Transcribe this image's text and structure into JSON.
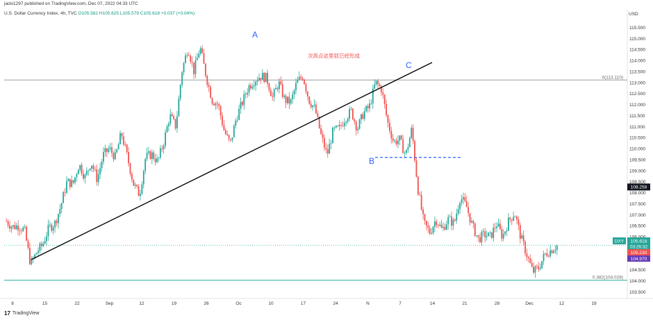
{
  "header": {
    "published": "jacki1297 published on TradingView.com, Dec 07, 2022 04:33 UTC"
  },
  "symbol_info": {
    "name": "U.S. Dollar Currency Index, 4h, TVC",
    "ohlc": "O105.582 H105.625 L105.579 C105.618 +0.037 (+0.04%)"
  },
  "footer": {
    "brand": "TradingView",
    "logo_glyph": "17"
  },
  "axis": {
    "currency": "USD"
  },
  "labels": {
    "point_a": "A",
    "point_b": "B",
    "point_c": "C",
    "annotation": "次高点这里就已经形成",
    "fib_top": "0(113.110)",
    "fib_bottom": "0.382(104.028)"
  },
  "price_tags": {
    "last_level": "108.258",
    "symbol": "DXY",
    "price": "105.618",
    "countdown": "03:26:32",
    "red_tag": "105.230",
    "purple_tag": "104.970"
  },
  "colors": {
    "up": "#26a69a",
    "down": "#ef5350",
    "trendline": "#000000",
    "fib_line": "#9e9e9e",
    "fib_bottom_line": "#26a69a",
    "dashed": "#2962ff",
    "label_blue": "#2962ff",
    "annotation_red": "#ef5350"
  },
  "chart_data": {
    "type": "candlestick",
    "interval": "4h",
    "yrange": [
      103.2,
      116.3
    ],
    "y_ticks": [
      "115.500",
      "115.000",
      "114.500",
      "114.000",
      "113.500",
      "113.000",
      "112.500",
      "112.000",
      "111.500",
      "111.000",
      "110.500",
      "110.000",
      "109.500",
      "109.000",
      "108.500",
      "108.000",
      "107.500",
      "107.000",
      "106.500",
      "106.000",
      "105.500",
      "105.000",
      "104.500",
      "104.000",
      "103.500"
    ],
    "x_ticks": [
      "8",
      "15",
      "22",
      "Sep",
      "12",
      "19",
      "26",
      "Oc",
      "10",
      "17",
      "24",
      "N",
      "7",
      "14",
      "21",
      "28",
      "Dec",
      "12",
      "19"
    ],
    "close_path": [
      {
        "t": 0,
        "p": 106.7
      },
      {
        "t": 1,
        "p": 106.45
      },
      {
        "t": 2,
        "p": 106.5
      },
      {
        "t": 3,
        "p": 106.3
      },
      {
        "t": 4,
        "p": 104.75
      },
      {
        "t": 5,
        "p": 105.3
      },
      {
        "t": 6,
        "p": 105.65
      },
      {
        "t": 7,
        "p": 106.4
      },
      {
        "t": 8,
        "p": 106.6
      },
      {
        "t": 9,
        "p": 107.4
      },
      {
        "t": 10,
        "p": 108.5
      },
      {
        "t": 11,
        "p": 108.4
      },
      {
        "t": 12,
        "p": 109.3
      },
      {
        "t": 13,
        "p": 108.7
      },
      {
        "t": 14,
        "p": 109.4
      },
      {
        "t": 15,
        "p": 108.6
      },
      {
        "t": 16,
        "p": 109.7
      },
      {
        "t": 17,
        "p": 110.0
      },
      {
        "t": 18,
        "p": 109.6
      },
      {
        "t": 19,
        "p": 110.7
      },
      {
        "t": 20,
        "p": 109.6
      },
      {
        "t": 21,
        "p": 108.4
      },
      {
        "t": 22,
        "p": 107.9
      },
      {
        "t": 23,
        "p": 109.6
      },
      {
        "t": 24,
        "p": 109.75
      },
      {
        "t": 25,
        "p": 109.4
      },
      {
        "t": 26,
        "p": 110.3
      },
      {
        "t": 27,
        "p": 111.5
      },
      {
        "t": 28,
        "p": 111.0
      },
      {
        "t": 29,
        "p": 113.5
      },
      {
        "t": 30,
        "p": 114.6
      },
      {
        "t": 31,
        "p": 113.5
      },
      {
        "t": 32,
        "p": 114.6
      },
      {
        "t": 33,
        "p": 113.3
      },
      {
        "t": 34,
        "p": 112.2
      },
      {
        "t": 35,
        "p": 112.0
      },
      {
        "t": 36,
        "p": 110.8
      },
      {
        "t": 37,
        "p": 110.2
      },
      {
        "t": 38,
        "p": 111.4
      },
      {
        "t": 39,
        "p": 112.1
      },
      {
        "t": 40,
        "p": 112.8
      },
      {
        "t": 41,
        "p": 113.1
      },
      {
        "t": 42,
        "p": 113.3
      },
      {
        "t": 43,
        "p": 113.2
      },
      {
        "t": 44,
        "p": 112.3
      },
      {
        "t": 45,
        "p": 113.0
      },
      {
        "t": 46,
        "p": 112.2
      },
      {
        "t": 47,
        "p": 112.1
      },
      {
        "t": 48,
        "p": 113.0
      },
      {
        "t": 49,
        "p": 113.3
      },
      {
        "t": 50,
        "p": 112.2
      },
      {
        "t": 51,
        "p": 111.8
      },
      {
        "t": 52,
        "p": 110.6
      },
      {
        "t": 53,
        "p": 109.7
      },
      {
        "t": 54,
        "p": 110.8
      },
      {
        "t": 55,
        "p": 110.9
      },
      {
        "t": 56,
        "p": 111.4
      },
      {
        "t": 57,
        "p": 111.7
      },
      {
        "t": 58,
        "p": 110.9
      },
      {
        "t": 59,
        "p": 111.6
      },
      {
        "t": 60,
        "p": 111.9
      },
      {
        "t": 61,
        "p": 113.0
      },
      {
        "t": 62,
        "p": 112.7
      },
      {
        "t": 63,
        "p": 111.2
      },
      {
        "t": 64,
        "p": 110.3
      },
      {
        "t": 65,
        "p": 110.4
      },
      {
        "t": 66,
        "p": 109.7
      },
      {
        "t": 67,
        "p": 110.9
      },
      {
        "t": 68,
        "p": 108.2
      },
      {
        "t": 69,
        "p": 106.6
      },
      {
        "t": 70,
        "p": 106.2
      },
      {
        "t": 71,
        "p": 106.8
      },
      {
        "t": 72,
        "p": 106.3
      },
      {
        "t": 73,
        "p": 106.8
      },
      {
        "t": 74,
        "p": 106.6
      },
      {
        "t": 75,
        "p": 107.8
      },
      {
        "t": 76,
        "p": 107.4
      },
      {
        "t": 77,
        "p": 106.5
      },
      {
        "t": 78,
        "p": 105.9
      },
      {
        "t": 79,
        "p": 106.1
      },
      {
        "t": 80,
        "p": 106.0
      },
      {
        "t": 81,
        "p": 106.6
      },
      {
        "t": 82,
        "p": 106.0
      },
      {
        "t": 83,
        "p": 106.7
      },
      {
        "t": 84,
        "p": 107.1
      },
      {
        "t": 85,
        "p": 106.0
      },
      {
        "t": 86,
        "p": 105.2
      },
      {
        "t": 87,
        "p": 104.4
      },
      {
        "t": 88,
        "p": 104.6
      },
      {
        "t": 89,
        "p": 105.2
      },
      {
        "t": 90,
        "p": 105.4
      },
      {
        "t": 91,
        "p": 105.6
      }
    ],
    "points": {
      "A": 114.8,
      "B": 109.6,
      "C": 113.3
    },
    "fib_levels": [
      {
        "ratio": 0,
        "price": 113.11
      },
      {
        "ratio": 0.382,
        "price": 104.028
      }
    ],
    "horizontal_levels": [
      109.6,
      105.618
    ],
    "last_price": 105.618
  }
}
